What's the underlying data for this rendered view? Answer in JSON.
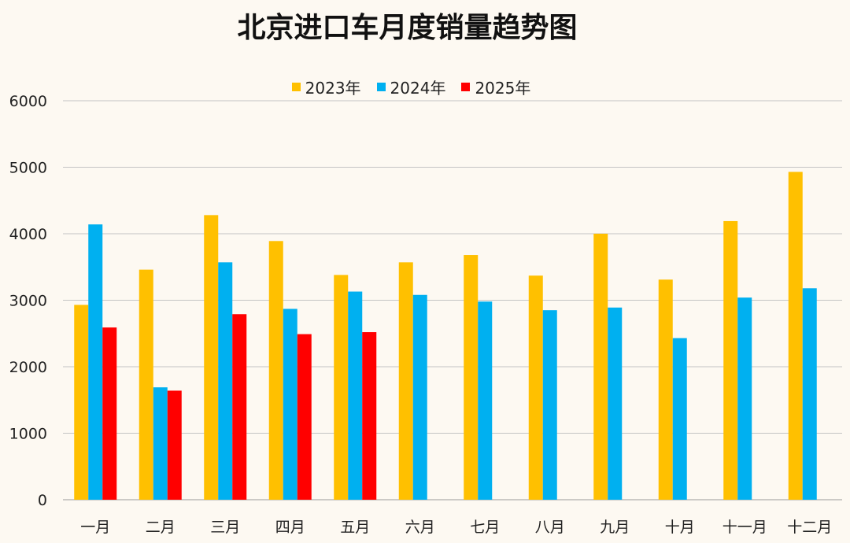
{
  "chart_data": {
    "type": "bar",
    "title": "北京进口车月度销量趋势图",
    "xlabel": "",
    "ylabel": "",
    "categories": [
      "一月",
      "二月",
      "三月",
      "四月",
      "五月",
      "六月",
      "七月",
      "八月",
      "九月",
      "十月",
      "十一月",
      "十二月"
    ],
    "ylim": [
      0,
      6000
    ],
    "yticks": [
      0,
      1000,
      2000,
      3000,
      4000,
      5000,
      6000
    ],
    "grid": true,
    "legend_position": "top",
    "series": [
      {
        "name": "2023年",
        "color": "#ffc000",
        "values": [
          2930,
          3460,
          4280,
          3890,
          3380,
          3570,
          3680,
          3370,
          4000,
          3310,
          4190,
          4930
        ]
      },
      {
        "name": "2024年",
        "color": "#00b0f0",
        "values": [
          4140,
          1690,
          3570,
          2870,
          3130,
          3080,
          2980,
          2850,
          2890,
          2430,
          3040,
          3180
        ]
      },
      {
        "name": "2025年",
        "color": "#ff0000",
        "values": [
          2590,
          1640,
          2790,
          2490,
          2520,
          null,
          null,
          null,
          null,
          null,
          null,
          null
        ]
      }
    ]
  }
}
